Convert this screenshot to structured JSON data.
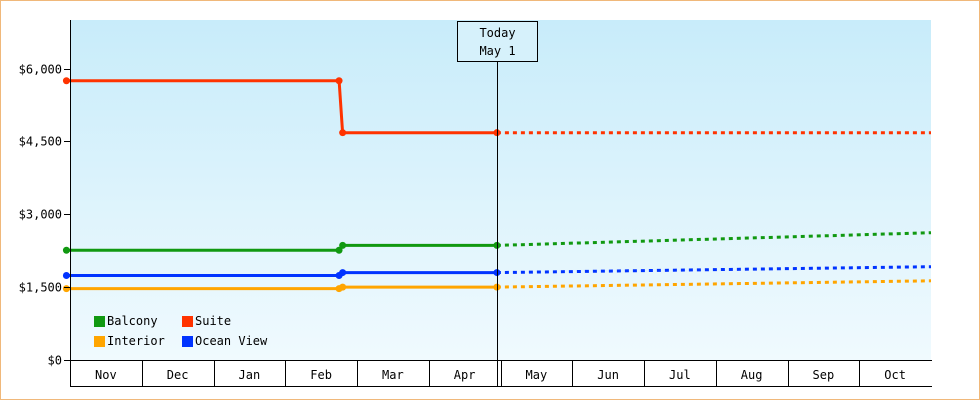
{
  "chart_data": {
    "type": "line",
    "title": "",
    "xlabel": "",
    "ylabel": "",
    "ylim": [
      0,
      7000
    ],
    "yticks": [
      0,
      1500,
      3000,
      4500,
      6000
    ],
    "ytick_labels": [
      "$0",
      "$1,500",
      "$3,000",
      "$4,500",
      "$6,000"
    ],
    "months": [
      "Nov",
      "Dec",
      "Jan",
      "Feb",
      "Mar",
      "Apr",
      "May",
      "Jun",
      "Jul",
      "Aug",
      "Sep",
      "Oct"
    ],
    "today_annotation": {
      "line1": "Today",
      "line2": "May 1"
    },
    "background_gradient": [
      "#c8ecfa",
      "#f0fafe"
    ],
    "series": [
      {
        "name": "Suite",
        "color": "#ff3300",
        "actual": [
          [
            -0.05,
            5750
          ],
          [
            3.75,
            5750
          ],
          [
            3.8,
            4680
          ],
          [
            5.95,
            4680
          ]
        ],
        "markers": [
          [
            -0.05,
            5750
          ],
          [
            3.75,
            5750
          ],
          [
            3.8,
            4680
          ],
          [
            5.95,
            4680
          ]
        ],
        "projected": [
          [
            5.95,
            4680
          ],
          [
            12,
            4680
          ]
        ]
      },
      {
        "name": "Balcony",
        "color": "#119911",
        "actual": [
          [
            -0.05,
            2260
          ],
          [
            3.75,
            2260
          ],
          [
            3.8,
            2360
          ],
          [
            5.95,
            2360
          ]
        ],
        "markers": [
          [
            -0.05,
            2260
          ],
          [
            3.75,
            2260
          ],
          [
            3.8,
            2360
          ],
          [
            5.95,
            2360
          ]
        ],
        "projected": [
          [
            5.95,
            2360
          ],
          [
            12,
            2620
          ]
        ]
      },
      {
        "name": "Ocean View",
        "color": "#0033ff",
        "actual": [
          [
            -0.05,
            1740
          ],
          [
            3.75,
            1740
          ],
          [
            3.8,
            1800
          ],
          [
            5.95,
            1800
          ]
        ],
        "markers": [
          [
            -0.05,
            1740
          ],
          [
            3.75,
            1740
          ],
          [
            3.8,
            1800
          ],
          [
            5.95,
            1800
          ]
        ],
        "projected": [
          [
            5.95,
            1800
          ],
          [
            12,
            1920
          ]
        ]
      },
      {
        "name": "Interior",
        "color": "#ffa500",
        "actual": [
          [
            -0.05,
            1470
          ],
          [
            3.75,
            1470
          ],
          [
            3.8,
            1500
          ],
          [
            5.95,
            1500
          ]
        ],
        "markers": [
          [
            -0.05,
            1470
          ],
          [
            3.75,
            1470
          ],
          [
            3.8,
            1500
          ],
          [
            5.95,
            1500
          ]
        ],
        "projected": [
          [
            5.95,
            1500
          ],
          [
            12,
            1630
          ]
        ]
      }
    ],
    "today_x": 5.95,
    "legend": {
      "placement": "bottom-left",
      "rows": [
        [
          "Balcony",
          "Suite"
        ],
        [
          "Interior",
          "Ocean View"
        ]
      ]
    }
  }
}
